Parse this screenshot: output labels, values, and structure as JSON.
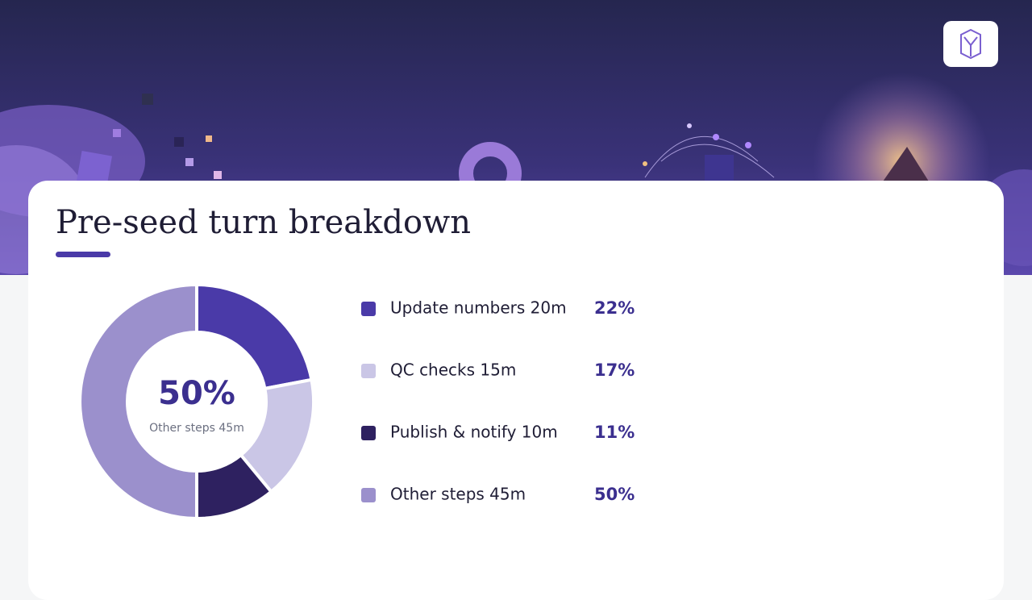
{
  "chart_data": {
    "type": "pie",
    "title": "Pre-seed turn breakdown",
    "categories": [
      "Update numbers 20m",
      "QC checks 15m",
      "Publish & notify 10m",
      "Other steps 45m"
    ],
    "values": [
      22,
      17,
      11,
      50
    ],
    "value_labels": [
      "22%",
      "17%",
      "11%",
      "50%"
    ],
    "colors": [
      "#4a3aa8",
      "#cac6e6",
      "#2e2160",
      "#9b90cc"
    ],
    "highlight": 3
  }
}
